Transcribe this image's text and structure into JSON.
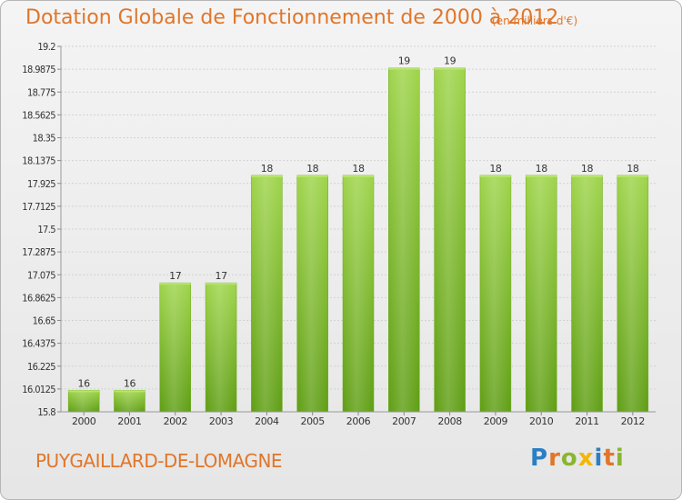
{
  "chart_data": {
    "type": "bar",
    "title": "Dotation Globale de Fonctionnement de 2000 à 2012",
    "unit_note": "(en milliers d'€)",
    "categories": [
      "2000",
      "2001",
      "2002",
      "2003",
      "2004",
      "2005",
      "2006",
      "2007",
      "2008",
      "2009",
      "2010",
      "2011",
      "2012"
    ],
    "values": [
      16,
      16,
      17,
      17,
      18,
      18,
      18,
      19,
      19,
      18,
      18,
      18,
      18
    ],
    "data_labels": [
      "16",
      "16",
      "17",
      "17",
      "18",
      "18",
      "18",
      "19",
      "19",
      "18",
      "18",
      "18",
      "18"
    ],
    "ylim": [
      15.8,
      19.2
    ],
    "yticks": [
      "19.2",
      "18.9875",
      "18.775",
      "18.5625",
      "18.35",
      "18.1375",
      "17.925",
      "17.7125",
      "17.5",
      "17.2875",
      "17.075",
      "16.8625",
      "16.65",
      "16.4375",
      "16.225",
      "16.0125",
      "15.8"
    ],
    "grid": true,
    "bar_color": "#86c234"
  },
  "footer": {
    "location": "PUYGAILLARD-DE-LOMAGNE",
    "logo_letters": [
      "P",
      "r",
      "o",
      "x",
      "i",
      "t",
      "i"
    ],
    "logo_colors": [
      "#2b7fc4",
      "#e0762a",
      "#8ab62e",
      "#f2b705",
      "#2b7fc4",
      "#e0762a",
      "#8ab62e"
    ]
  }
}
